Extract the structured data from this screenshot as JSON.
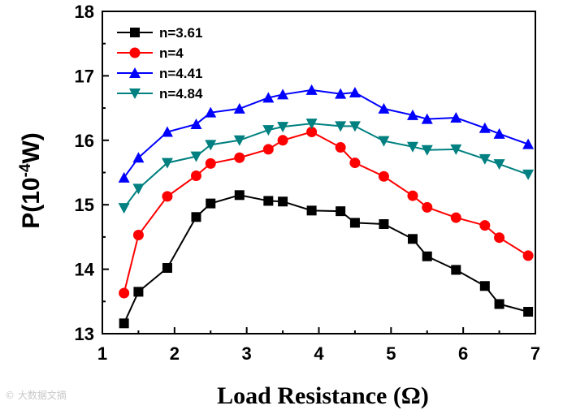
{
  "chart_data": {
    "type": "line",
    "title": "",
    "xlabel": "Load Resistance (Ω)",
    "ylabel_main": "P(10",
    "ylabel_exp": "-4",
    "ylabel_unit": "W)",
    "xlim": [
      1,
      7
    ],
    "ylim": [
      13,
      18
    ],
    "xticks": [
      1,
      2,
      3,
      4,
      5,
      6,
      7
    ],
    "yticks": [
      13,
      14,
      15,
      16,
      17,
      18
    ],
    "legend_position": "top-left",
    "series": [
      {
        "name": "n=3.61",
        "color": "#000000",
        "marker": "square",
        "x": [
          1.3,
          1.5,
          1.9,
          2.3,
          2.5,
          2.9,
          3.3,
          3.5,
          3.9,
          4.3,
          4.5,
          4.9,
          5.3,
          5.5,
          5.9,
          6.3,
          6.5,
          6.9
        ],
        "y": [
          13.16,
          13.65,
          14.02,
          14.81,
          15.02,
          15.15,
          15.06,
          15.05,
          14.91,
          14.9,
          14.72,
          14.7,
          14.47,
          14.2,
          13.99,
          13.74,
          13.46,
          13.34
        ]
      },
      {
        "name": "n=4",
        "color": "#ff0000",
        "marker": "circle",
        "x": [
          1.3,
          1.5,
          1.9,
          2.3,
          2.5,
          2.9,
          3.3,
          3.5,
          3.9,
          4.3,
          4.5,
          4.9,
          5.3,
          5.5,
          5.9,
          6.3,
          6.5,
          6.9
        ],
        "y": [
          13.63,
          14.53,
          15.13,
          15.45,
          15.64,
          15.73,
          15.86,
          16.0,
          16.13,
          15.89,
          15.65,
          15.44,
          15.14,
          14.96,
          14.8,
          14.68,
          14.49,
          14.21
        ]
      },
      {
        "name": "n=4.41",
        "color": "#0000ff",
        "marker": "triangle-up",
        "x": [
          1.3,
          1.5,
          1.9,
          2.3,
          2.5,
          2.9,
          3.3,
          3.5,
          3.9,
          4.3,
          4.5,
          4.9,
          5.3,
          5.5,
          5.9,
          6.3,
          6.5,
          6.9
        ],
        "y": [
          15.42,
          15.73,
          16.13,
          16.25,
          16.43,
          16.49,
          16.66,
          16.71,
          16.78,
          16.72,
          16.74,
          16.49,
          16.39,
          16.33,
          16.35,
          16.19,
          16.1,
          15.94
        ]
      },
      {
        "name": "n=4.84",
        "color": "#008080",
        "marker": "triangle-down",
        "x": [
          1.3,
          1.5,
          1.9,
          2.3,
          2.5,
          2.9,
          3.3,
          3.5,
          3.9,
          4.3,
          4.5,
          4.9,
          5.3,
          5.5,
          5.9,
          6.3,
          6.5,
          6.9
        ],
        "y": [
          14.95,
          15.25,
          15.65,
          15.75,
          15.93,
          16.0,
          16.16,
          16.21,
          16.26,
          16.22,
          16.22,
          15.99,
          15.9,
          15.85,
          15.86,
          15.71,
          15.63,
          15.47
        ]
      }
    ]
  },
  "watermark": "© 大数据文摘"
}
